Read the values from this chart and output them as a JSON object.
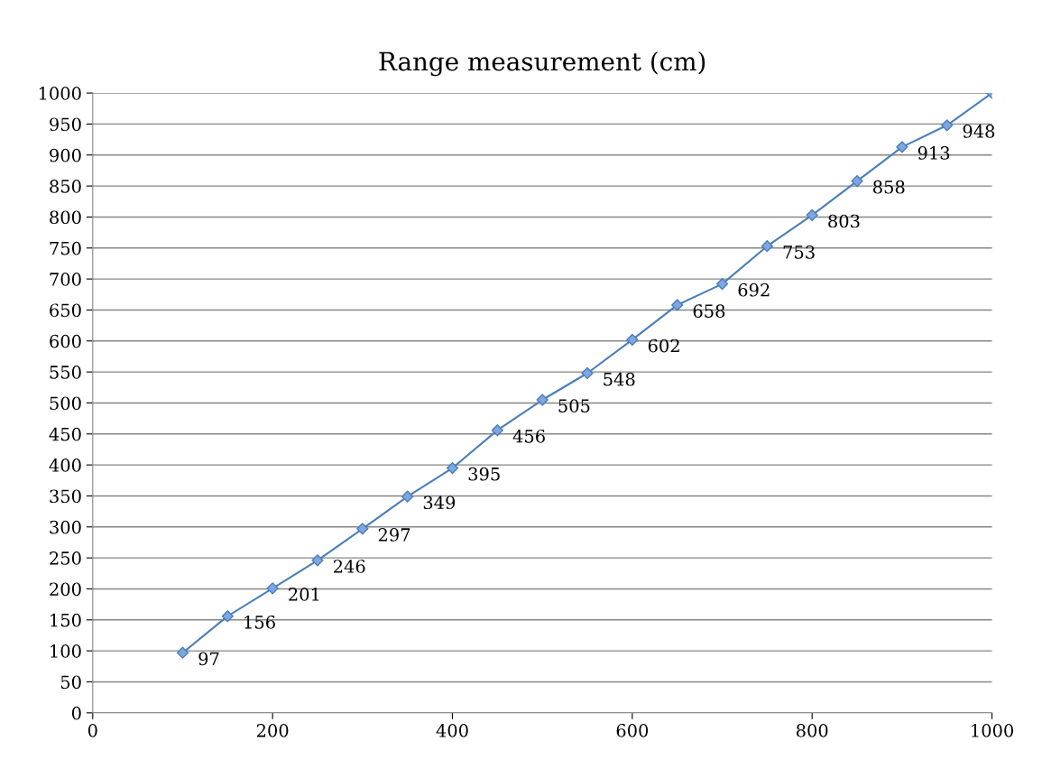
{
  "chart_data": {
    "type": "line",
    "title": "Range measurement (cm)",
    "x": [
      100,
      150,
      200,
      250,
      300,
      350,
      400,
      450,
      500,
      550,
      600,
      650,
      700,
      750,
      800,
      850,
      900,
      950,
      1000
    ],
    "series": [
      {
        "color": "#4a7ebb",
        "values": [
          97,
          156,
          201,
          246,
          297,
          349,
          395,
          456,
          505,
          548,
          602,
          658,
          692,
          753,
          803,
          858,
          913,
          948,
          1000
        ],
        "value_labels": [
          "97",
          "156",
          "201",
          "246",
          "297",
          "349",
          "395",
          "456",
          "505",
          "548",
          "602",
          "658",
          "692",
          "753",
          "803",
          "858",
          "913",
          "948",
          null
        ]
      }
    ],
    "xlim": [
      0,
      1000
    ],
    "xticks": [
      0,
      200,
      400,
      600,
      800,
      1000
    ],
    "ylim": [
      0,
      1000
    ],
    "yticks": [
      0,
      50,
      100,
      150,
      200,
      250,
      300,
      350,
      400,
      450,
      500,
      550,
      600,
      650,
      700,
      750,
      800,
      850,
      900,
      950,
      1000
    ],
    "grid": "y",
    "marker": "diamond",
    "line_style": "solid",
    "legend": false
  }
}
